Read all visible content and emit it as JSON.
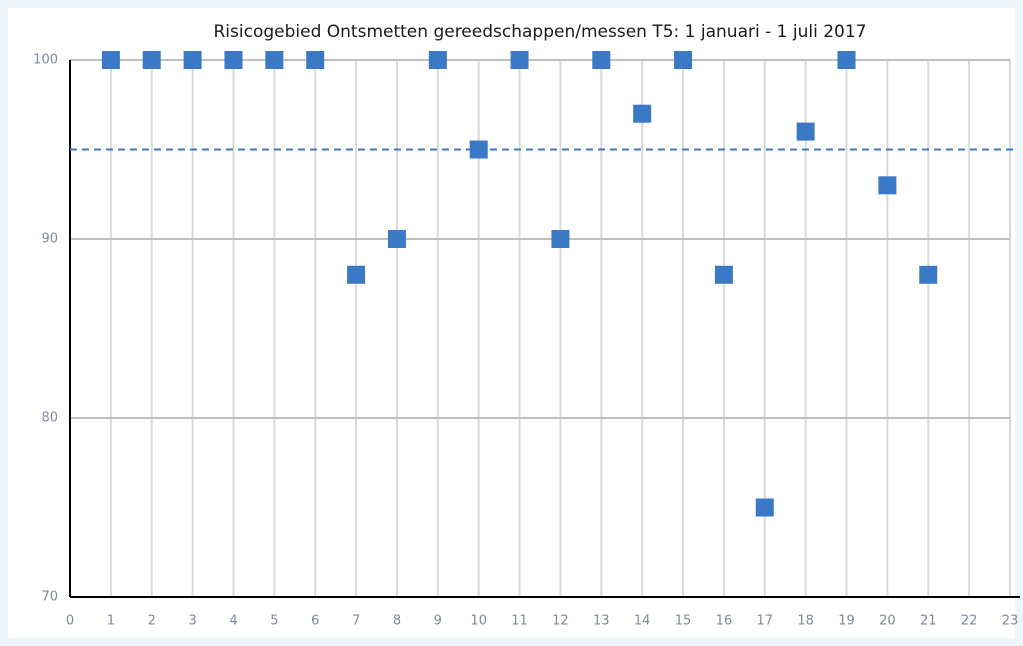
{
  "chart_data": {
    "type": "scatter",
    "title": "Risicogebied Ontsmetten gereedschappen/messen T5: 1 januari - 1 juli 2017",
    "x": [
      1,
      2,
      3,
      4,
      5,
      6,
      7,
      8,
      9,
      10,
      11,
      12,
      13,
      14,
      15,
      16,
      17,
      18,
      19,
      20,
      21
    ],
    "values": [
      100,
      100,
      100,
      100,
      100,
      100,
      88,
      90,
      100,
      95,
      100,
      90,
      100,
      97,
      100,
      88,
      75,
      96,
      100,
      93,
      88
    ],
    "color": "#3b78c6",
    "reference_line": {
      "value": 95,
      "color": "#3b78c6",
      "dashed": true
    },
    "xlim": [
      0,
      23
    ],
    "xticks": [
      0,
      1,
      2,
      3,
      4,
      5,
      6,
      7,
      8,
      9,
      10,
      11,
      12,
      13,
      14,
      15,
      16,
      17,
      18,
      19,
      20,
      21,
      22,
      23
    ],
    "ylim": [
      70,
      100
    ],
    "yticks": [
      70,
      80,
      90,
      100
    ],
    "grid": true
  }
}
